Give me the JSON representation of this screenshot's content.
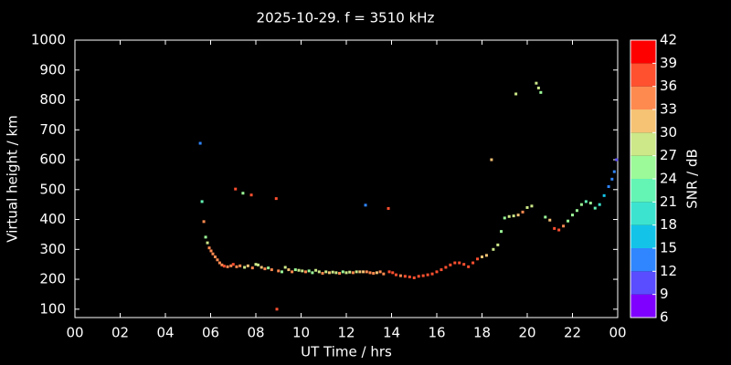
{
  "chart_data": {
    "type": "scatter",
    "title": "2025-10-29. f = 3510 kHz",
    "x_label": "UT Time / hrs",
    "y_label": "Virtual height / km",
    "colorbar_label": "SNR / dB",
    "xlim": [
      0,
      24
    ],
    "xticks": [
      {
        "value": 0,
        "label": "00"
      },
      {
        "value": 2,
        "label": "02"
      },
      {
        "value": 4,
        "label": "04"
      },
      {
        "value": 6,
        "label": "06"
      },
      {
        "value": 8,
        "label": "08"
      },
      10,
      12,
      14,
      16,
      18,
      20,
      22,
      {
        "value": 24,
        "label": "00"
      }
    ],
    "ylim": [
      72,
      1000
    ],
    "yticks": [
      100,
      200,
      300,
      400,
      500,
      600,
      700,
      800,
      900,
      1000
    ],
    "clim": [
      6,
      42
    ],
    "cticks": [
      6,
      9,
      12,
      15,
      18,
      21,
      24,
      27,
      30,
      33,
      36,
      39,
      42
    ],
    "colors": [
      "#7f00ff",
      "#5a4cff",
      "#2f86ff",
      "#13c4e8",
      "#3ce4d0",
      "#64f4b4",
      "#9cfa98",
      "#cce888",
      "#f6c274",
      "#ff8a50",
      "#ff5030",
      "#ff0000"
    ],
    "x": [
      5.54,
      5.62,
      5.7,
      5.78,
      5.86,
      5.94,
      6.02,
      6.1,
      6.2,
      6.3,
      6.4,
      6.5,
      6.6,
      6.75,
      6.9,
      7.0,
      7.1,
      7.15,
      7.3,
      7.43,
      7.5,
      7.65,
      7.8,
      7.85,
      8.0,
      8.1,
      8.25,
      8.4,
      8.55,
      8.7,
      8.9,
      8.93,
      9.0,
      9.15,
      9.3,
      9.45,
      9.6,
      9.75,
      9.9,
      10.05,
      10.2,
      10.35,
      10.5,
      10.65,
      10.8,
      10.95,
      11.1,
      11.25,
      11.4,
      11.55,
      11.7,
      11.85,
      12.0,
      12.15,
      12.3,
      12.45,
      12.6,
      12.75,
      12.85,
      12.9,
      13.05,
      13.2,
      13.35,
      13.5,
      13.65,
      13.86,
      13.9,
      14.05,
      14.2,
      14.4,
      14.6,
      14.8,
      15.0,
      15.2,
      15.4,
      15.6,
      15.8,
      16.0,
      16.2,
      16.4,
      16.6,
      16.8,
      17.0,
      17.2,
      17.4,
      17.6,
      17.8,
      18.0,
      18.2,
      18.42,
      18.5,
      18.7,
      18.85,
      19.0,
      19.2,
      19.4,
      19.5,
      19.6,
      19.8,
      20.0,
      20.2,
      20.4,
      20.5,
      20.6,
      20.8,
      21.0,
      21.2,
      21.4,
      21.6,
      21.8,
      22.0,
      22.2,
      22.4,
      22.6,
      22.8,
      23.0,
      23.2,
      23.4,
      23.6,
      23.75,
      23.85,
      23.95
    ],
    "values": [
      655,
      460,
      393,
      341,
      322,
      305,
      295,
      285,
      275,
      265,
      255,
      248,
      244,
      242,
      245,
      250,
      502,
      242,
      245,
      488,
      240,
      245,
      482,
      238,
      250,
      248,
      240,
      235,
      238,
      232,
      470,
      100,
      228,
      225,
      240,
      232,
      225,
      232,
      230,
      228,
      225,
      228,
      222,
      230,
      225,
      220,
      225,
      222,
      224,
      222,
      220,
      225,
      222,
      224,
      222,
      225,
      225,
      225,
      448,
      225,
      222,
      220,
      222,
      225,
      218,
      437,
      225,
      222,
      215,
      212,
      210,
      208,
      205,
      210,
      212,
      215,
      218,
      225,
      232,
      240,
      248,
      255,
      255,
      250,
      242,
      255,
      268,
      275,
      280,
      600,
      300,
      315,
      360,
      405,
      410,
      412,
      820,
      415,
      425,
      440,
      445,
      856,
      840,
      825,
      408,
      398,
      370,
      365,
      378,
      395,
      415,
      430,
      450,
      460,
      455,
      438,
      450,
      480,
      510,
      535,
      560,
      600
    ],
    "snr": [
      13,
      22,
      34,
      25,
      27,
      33,
      34,
      35,
      35,
      34,
      35,
      34,
      36,
      35,
      34,
      36,
      38,
      33,
      35,
      26,
      27,
      30,
      36,
      33,
      29,
      27,
      31,
      34,
      25,
      35,
      36,
      36,
      35,
      26,
      29,
      31,
      33,
      24,
      28,
      27,
      33,
      24,
      26,
      29,
      28,
      35,
      27,
      30,
      28,
      27,
      33,
      26,
      29,
      27,
      33,
      28,
      30,
      31,
      14,
      33,
      35,
      34,
      31,
      33,
      35,
      37,
      36,
      37,
      36,
      35,
      38,
      37,
      38,
      37,
      36,
      37,
      38,
      37,
      37,
      38,
      37,
      38,
      37,
      37,
      36,
      37,
      36,
      31,
      30,
      31,
      28,
      29,
      26,
      25,
      29,
      28,
      28,
      30,
      33,
      28,
      27,
      29,
      27,
      25,
      24,
      30,
      37,
      38,
      35,
      25,
      24,
      25,
      24,
      23,
      24,
      22,
      20,
      17,
      12,
      13,
      12,
      11
    ]
  }
}
